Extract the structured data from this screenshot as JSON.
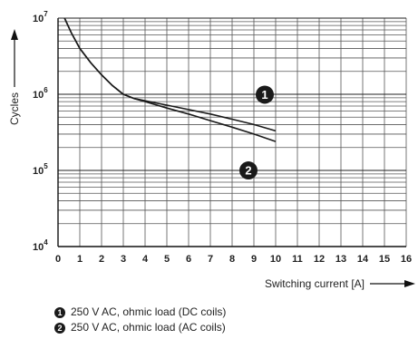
{
  "chart_data": {
    "type": "line",
    "xlabel": "Switching current [A]",
    "ylabel": "Cycles",
    "xlim": [
      0,
      16
    ],
    "ylim": [
      10000,
      10000000
    ],
    "yscale": "log",
    "grid": true,
    "x_ticks": [
      "0",
      "1",
      "2",
      "3",
      "4",
      "5",
      "6",
      "7",
      "8",
      "9",
      "10",
      "11",
      "12",
      "13",
      "14",
      "15",
      "16"
    ],
    "y_ticks": [
      {
        "base": "10",
        "exp": "4",
        "value": 10000
      },
      {
        "base": "10",
        "exp": "5",
        "value": 100000
      },
      {
        "base": "10",
        "exp": "6",
        "value": 1000000
      },
      {
        "base": "10",
        "exp": "7",
        "value": 10000000
      }
    ],
    "series": [
      {
        "name": "250 V AC, ohmic load (DC coils)",
        "marker": "1",
        "color": "#1a1a1a",
        "points": [
          [
            0.3,
            10000000
          ],
          [
            0.6,
            6500000
          ],
          [
            1,
            4000000
          ],
          [
            1.5,
            2600000
          ],
          [
            2,
            1800000
          ],
          [
            2.5,
            1300000
          ],
          [
            3,
            1000000
          ],
          [
            3.5,
            880000
          ],
          [
            4,
            820000
          ],
          [
            5,
            720000
          ],
          [
            6,
            630000
          ],
          [
            7,
            550000
          ],
          [
            8,
            470000
          ],
          [
            9,
            400000
          ],
          [
            10,
            330000
          ]
        ]
      },
      {
        "name": "250 V AC, ohmic load (AC coils)",
        "marker": "2",
        "color": "#1a1a1a",
        "points": [
          [
            0.3,
            10000000
          ],
          [
            0.6,
            6500000
          ],
          [
            1,
            4000000
          ],
          [
            1.5,
            2600000
          ],
          [
            2,
            1800000
          ],
          [
            2.5,
            1300000
          ],
          [
            3,
            1000000
          ],
          [
            3.5,
            880000
          ],
          [
            4,
            800000
          ],
          [
            5,
            660000
          ],
          [
            6,
            550000
          ],
          [
            7,
            450000
          ],
          [
            8,
            370000
          ],
          [
            9,
            300000
          ],
          [
            10,
            240000
          ]
        ]
      }
    ],
    "legend": [
      {
        "marker": "1",
        "label": "250 V AC, ohmic load (DC coils)"
      },
      {
        "marker": "2",
        "label": "250 V AC, ohmic load (AC coils)"
      }
    ]
  }
}
